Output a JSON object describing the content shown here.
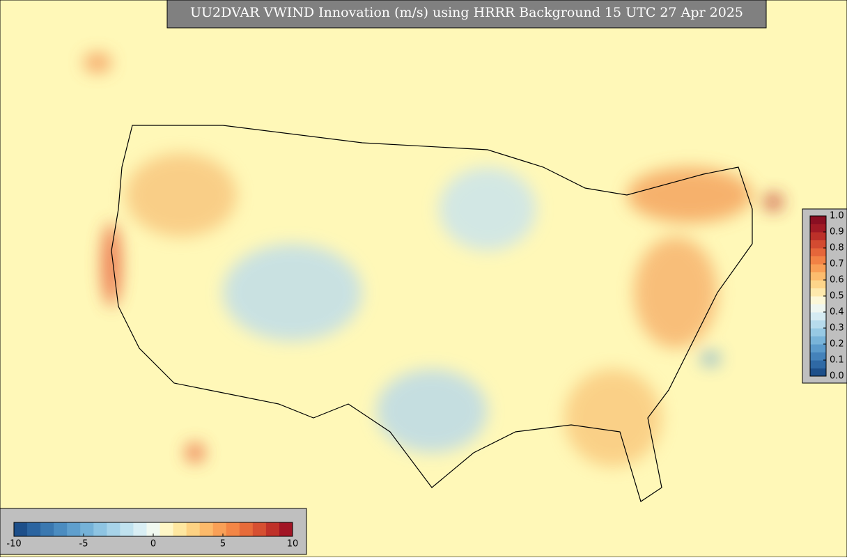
{
  "title": "UU2DVAR VWIND Innovation (m/s) using HRRR Background 15 UTC 27 Apr 2025",
  "colorbar_bottom": {
    "lim": [
      -10,
      10
    ],
    "ticks": [
      -10,
      -5,
      0,
      5,
      10
    ],
    "colors": [
      "#1d4f8a",
      "#2b64a0",
      "#3a78b0",
      "#4b8cc0",
      "#5f9fcd",
      "#75b2d8",
      "#8ec4e2",
      "#a7d3e9",
      "#c0e2ef",
      "#d9eef4",
      "#f0f8f0",
      "#fff7c6",
      "#fee7a0",
      "#fdd283",
      "#fcba6b",
      "#f9a057",
      "#f38646",
      "#e76b3a",
      "#d64f31",
      "#bf3129",
      "#a21525"
    ]
  },
  "colorbar_right": {
    "lim": [
      0,
      1
    ],
    "ticks": [
      {
        "value": 0,
        "label": "0.0"
      },
      {
        "value": 0.1,
        "label": "0.1"
      },
      {
        "value": 0.2,
        "label": "0.2"
      },
      {
        "value": 0.3,
        "label": "0.3"
      },
      {
        "value": 0.4,
        "label": "0.4"
      },
      {
        "value": 0.5,
        "label": "0.5"
      },
      {
        "value": 0.6,
        "label": "0.6"
      },
      {
        "value": 0.7,
        "label": "0.7"
      },
      {
        "value": 0.8,
        "label": "0.8"
      },
      {
        "value": 0.9,
        "label": "0.9"
      },
      {
        "value": 1,
        "label": "1.0"
      }
    ],
    "colors": [
      "#1d4f8a",
      "#2f69a5",
      "#4482ba",
      "#5c9bcb",
      "#79b4d9",
      "#97c9e4",
      "#b7dbec",
      "#d5ebf2",
      "#eef6f0",
      "#fbf7d8",
      "#fde9ad",
      "#fdd58a",
      "#fcbc6e",
      "#f99f56",
      "#f28245",
      "#e5663a",
      "#d34b31",
      "#bc3029",
      "#a11a25",
      "#8a0f22"
    ]
  }
}
